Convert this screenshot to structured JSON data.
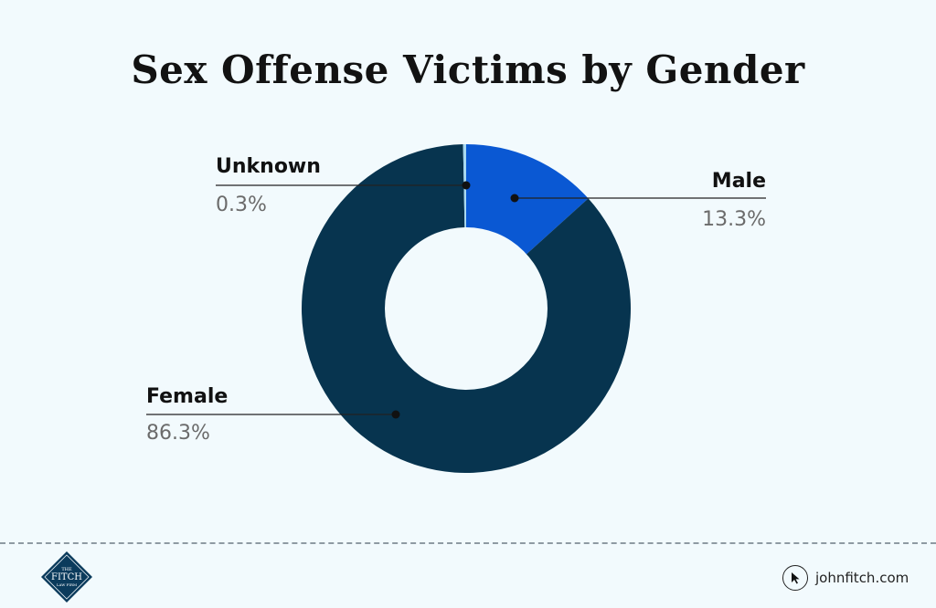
{
  "title": "Sex Offense Victims by Gender",
  "chart_data": {
    "type": "pie",
    "variant": "donut",
    "slices": [
      {
        "label": "Male",
        "value": 13.3,
        "display": "13.3%",
        "color": "#0a58d3"
      },
      {
        "label": "Female",
        "value": 86.3,
        "display": "86.3%",
        "color": "#07344f"
      },
      {
        "label": "Unknown",
        "value": 0.3,
        "display": "0.3%",
        "color": "#a8d8ef"
      }
    ]
  },
  "footer": {
    "logo": {
      "line1": "THE",
      "line2": "FITCH",
      "line3": "LAW FIRM",
      "color": "#0b3b5c"
    },
    "website": "johnfitch.com"
  }
}
